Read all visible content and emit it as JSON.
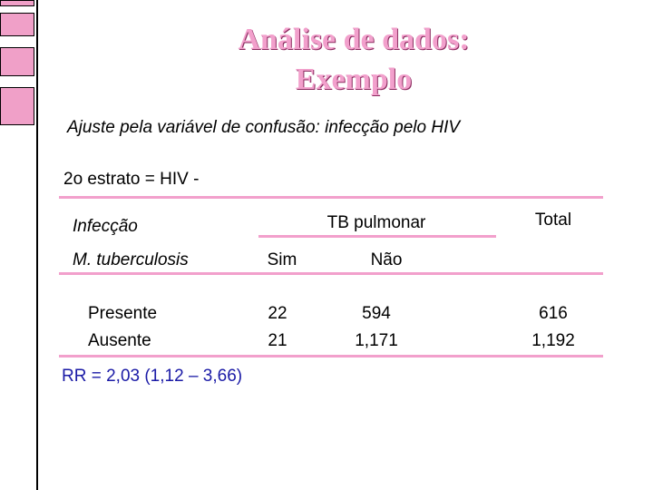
{
  "slide": {
    "title_line1": "Análise de dados:",
    "title_line2": "Exemplo",
    "subtitle": "Ajuste pela variável de confusão: infecção pelo HIV",
    "stratum": "2o estrato = HIV -"
  },
  "table": {
    "header_infeccao": "Infecção",
    "header_mtb": "M. tuberculosis",
    "header_tb": "TB pulmonar",
    "header_total": "Total",
    "col_sim": "Sim",
    "col_nao": "Não",
    "rows": [
      {
        "label": "Presente",
        "sim": "22",
        "nao": "594",
        "total": "616"
      },
      {
        "label": "Ausente",
        "sim": "21",
        "nao": "1,171",
        "total": "1,192"
      }
    ]
  },
  "result": "RR = 2,03 (1,12 – 3,66)",
  "colors": {
    "accent_pink": "#f2a0cc",
    "result_blue": "#1a1aa6"
  }
}
